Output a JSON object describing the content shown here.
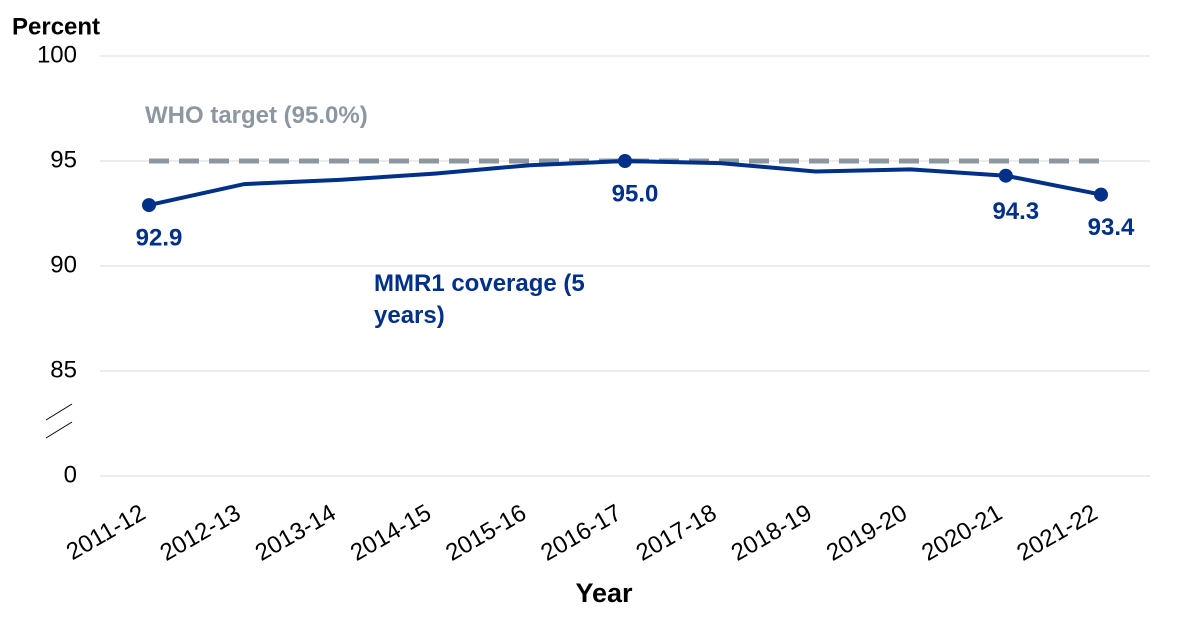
{
  "chart_data": {
    "type": "line",
    "y_axis_label": "Percent",
    "x_axis_label": "Year",
    "x": [
      "2011-12",
      "2012-13",
      "2013-14",
      "2014-15",
      "2015-16",
      "2016-17",
      "2017-18",
      "2018-19",
      "2019-20",
      "2020-21",
      "2021-22"
    ],
    "series": [
      {
        "name": "MMR1 coverage (5 years)",
        "color": "#003087",
        "values": [
          92.9,
          93.9,
          94.1,
          94.4,
          94.8,
          95.0,
          94.9,
          94.5,
          94.6,
          94.3,
          93.4
        ],
        "value_labels": [
          "92.9",
          null,
          null,
          null,
          null,
          "95.0",
          null,
          null,
          null,
          "94.3",
          "93.4"
        ]
      },
      {
        "name": "WHO target (95.0%)",
        "color": "#8d97a2",
        "dashed": true,
        "values": [
          95,
          95,
          95,
          95,
          95,
          95,
          95,
          95,
          95,
          95,
          95
        ]
      }
    ],
    "ylim": [
      0,
      100
    ],
    "yticks": [
      0,
      85,
      90,
      95,
      100
    ],
    "y_break": [
      0,
      85
    ],
    "grid": true
  }
}
